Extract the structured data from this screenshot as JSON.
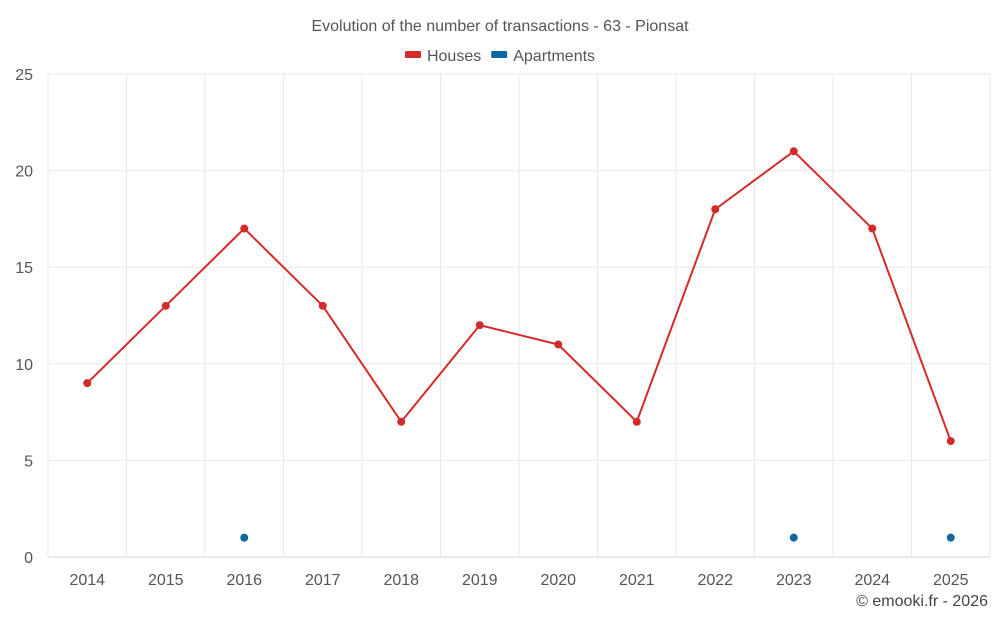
{
  "chart_data": {
    "type": "line",
    "title": "Evolution of the number of transactions - 63 - Pionsat",
    "categories": [
      "2014",
      "2015",
      "2016",
      "2017",
      "2018",
      "2019",
      "2020",
      "2021",
      "2022",
      "2023",
      "2024",
      "2025"
    ],
    "ylim": [
      0,
      25
    ],
    "yticks": [
      0,
      5,
      10,
      15,
      20,
      25
    ],
    "grid": true,
    "legend_position": "top-center",
    "xlabel": "",
    "ylabel": "",
    "series": [
      {
        "name": "Houses",
        "color": "#d42a2a",
        "line": true,
        "values": [
          9,
          13,
          17,
          13,
          7,
          12,
          11,
          7,
          18,
          21,
          17,
          6
        ]
      },
      {
        "name": "Apartments",
        "color": "#0f67a0",
        "line": false,
        "values": [
          null,
          null,
          1,
          null,
          null,
          null,
          null,
          null,
          null,
          1,
          null,
          1
        ]
      }
    ]
  },
  "credit": "© emooki.fr - 2026"
}
